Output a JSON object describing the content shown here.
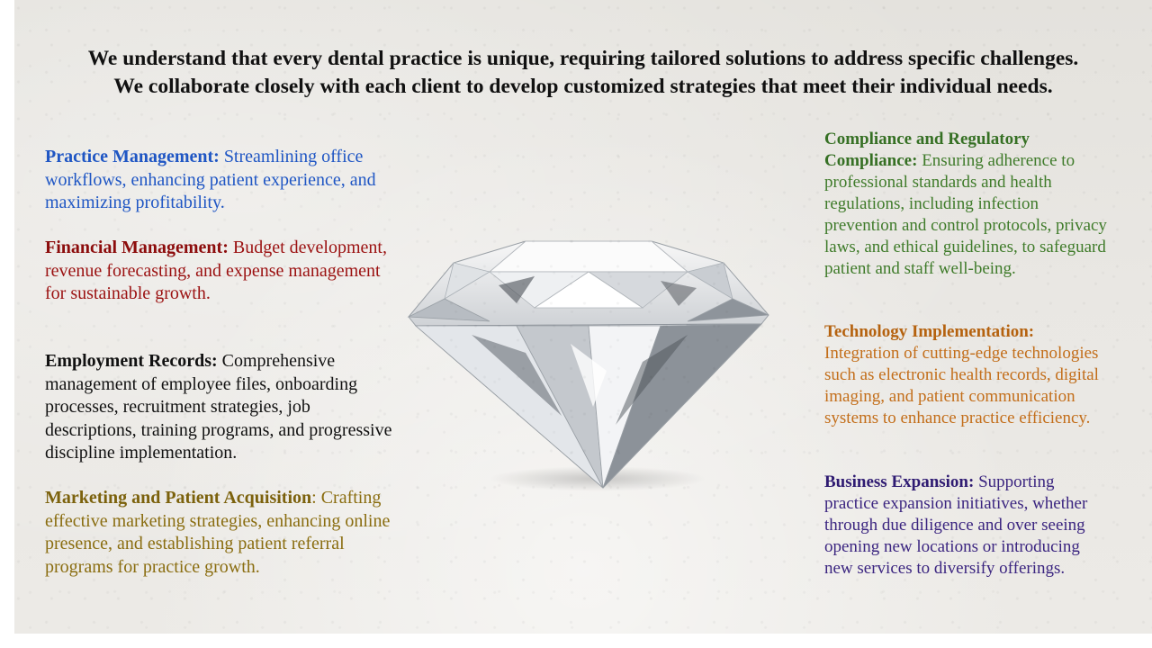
{
  "headline": {
    "line1": "We understand that every dental practice is unique, requiring tailored solutions to address specific challenges.",
    "line2": "We collaborate closely with each client to develop customized strategies that meet their individual needs."
  },
  "left": {
    "practice_management": {
      "title": "Practice Management:",
      "text": " Streamlining office workflows, enhancing patient experience, and maximizing profitability."
    },
    "financial_management": {
      "title": "Financial Management:",
      "text": " Budget development, revenue forecasting, and expense management for sustainable growth."
    },
    "employment_records": {
      "title": "Employment Records:",
      "text": " Comprehensive management of employee files, onboarding processes, recruitment strategies, job descriptions, training programs, and progressive discipline implementation."
    },
    "marketing": {
      "title": "Marketing and Patient Acquisition",
      "text": ": Crafting effective marketing strategies, enhancing online presence, and establishing patient referral programs for practice growth."
    }
  },
  "right": {
    "compliance": {
      "title": "Compliance and Regulatory Compliance:",
      "text": " Ensuring adherence to professional standards and health regulations, including infection prevention and control protocols, privacy laws, and ethical guidelines, to safeguard patient and staff well-being."
    },
    "technology": {
      "title": "Technology Implementation:",
      "text": " Integration of cutting-edge technologies such as electronic health records, digital imaging, and patient communication systems to enhance practice efficiency."
    },
    "expansion": {
      "title": "Business Expansion:",
      "text": " Supporting practice expansion initiatives, whether through due diligence and over seeing opening new locations or introducing new services to diversify offerings."
    }
  },
  "image": {
    "icon": "diamond-icon"
  }
}
